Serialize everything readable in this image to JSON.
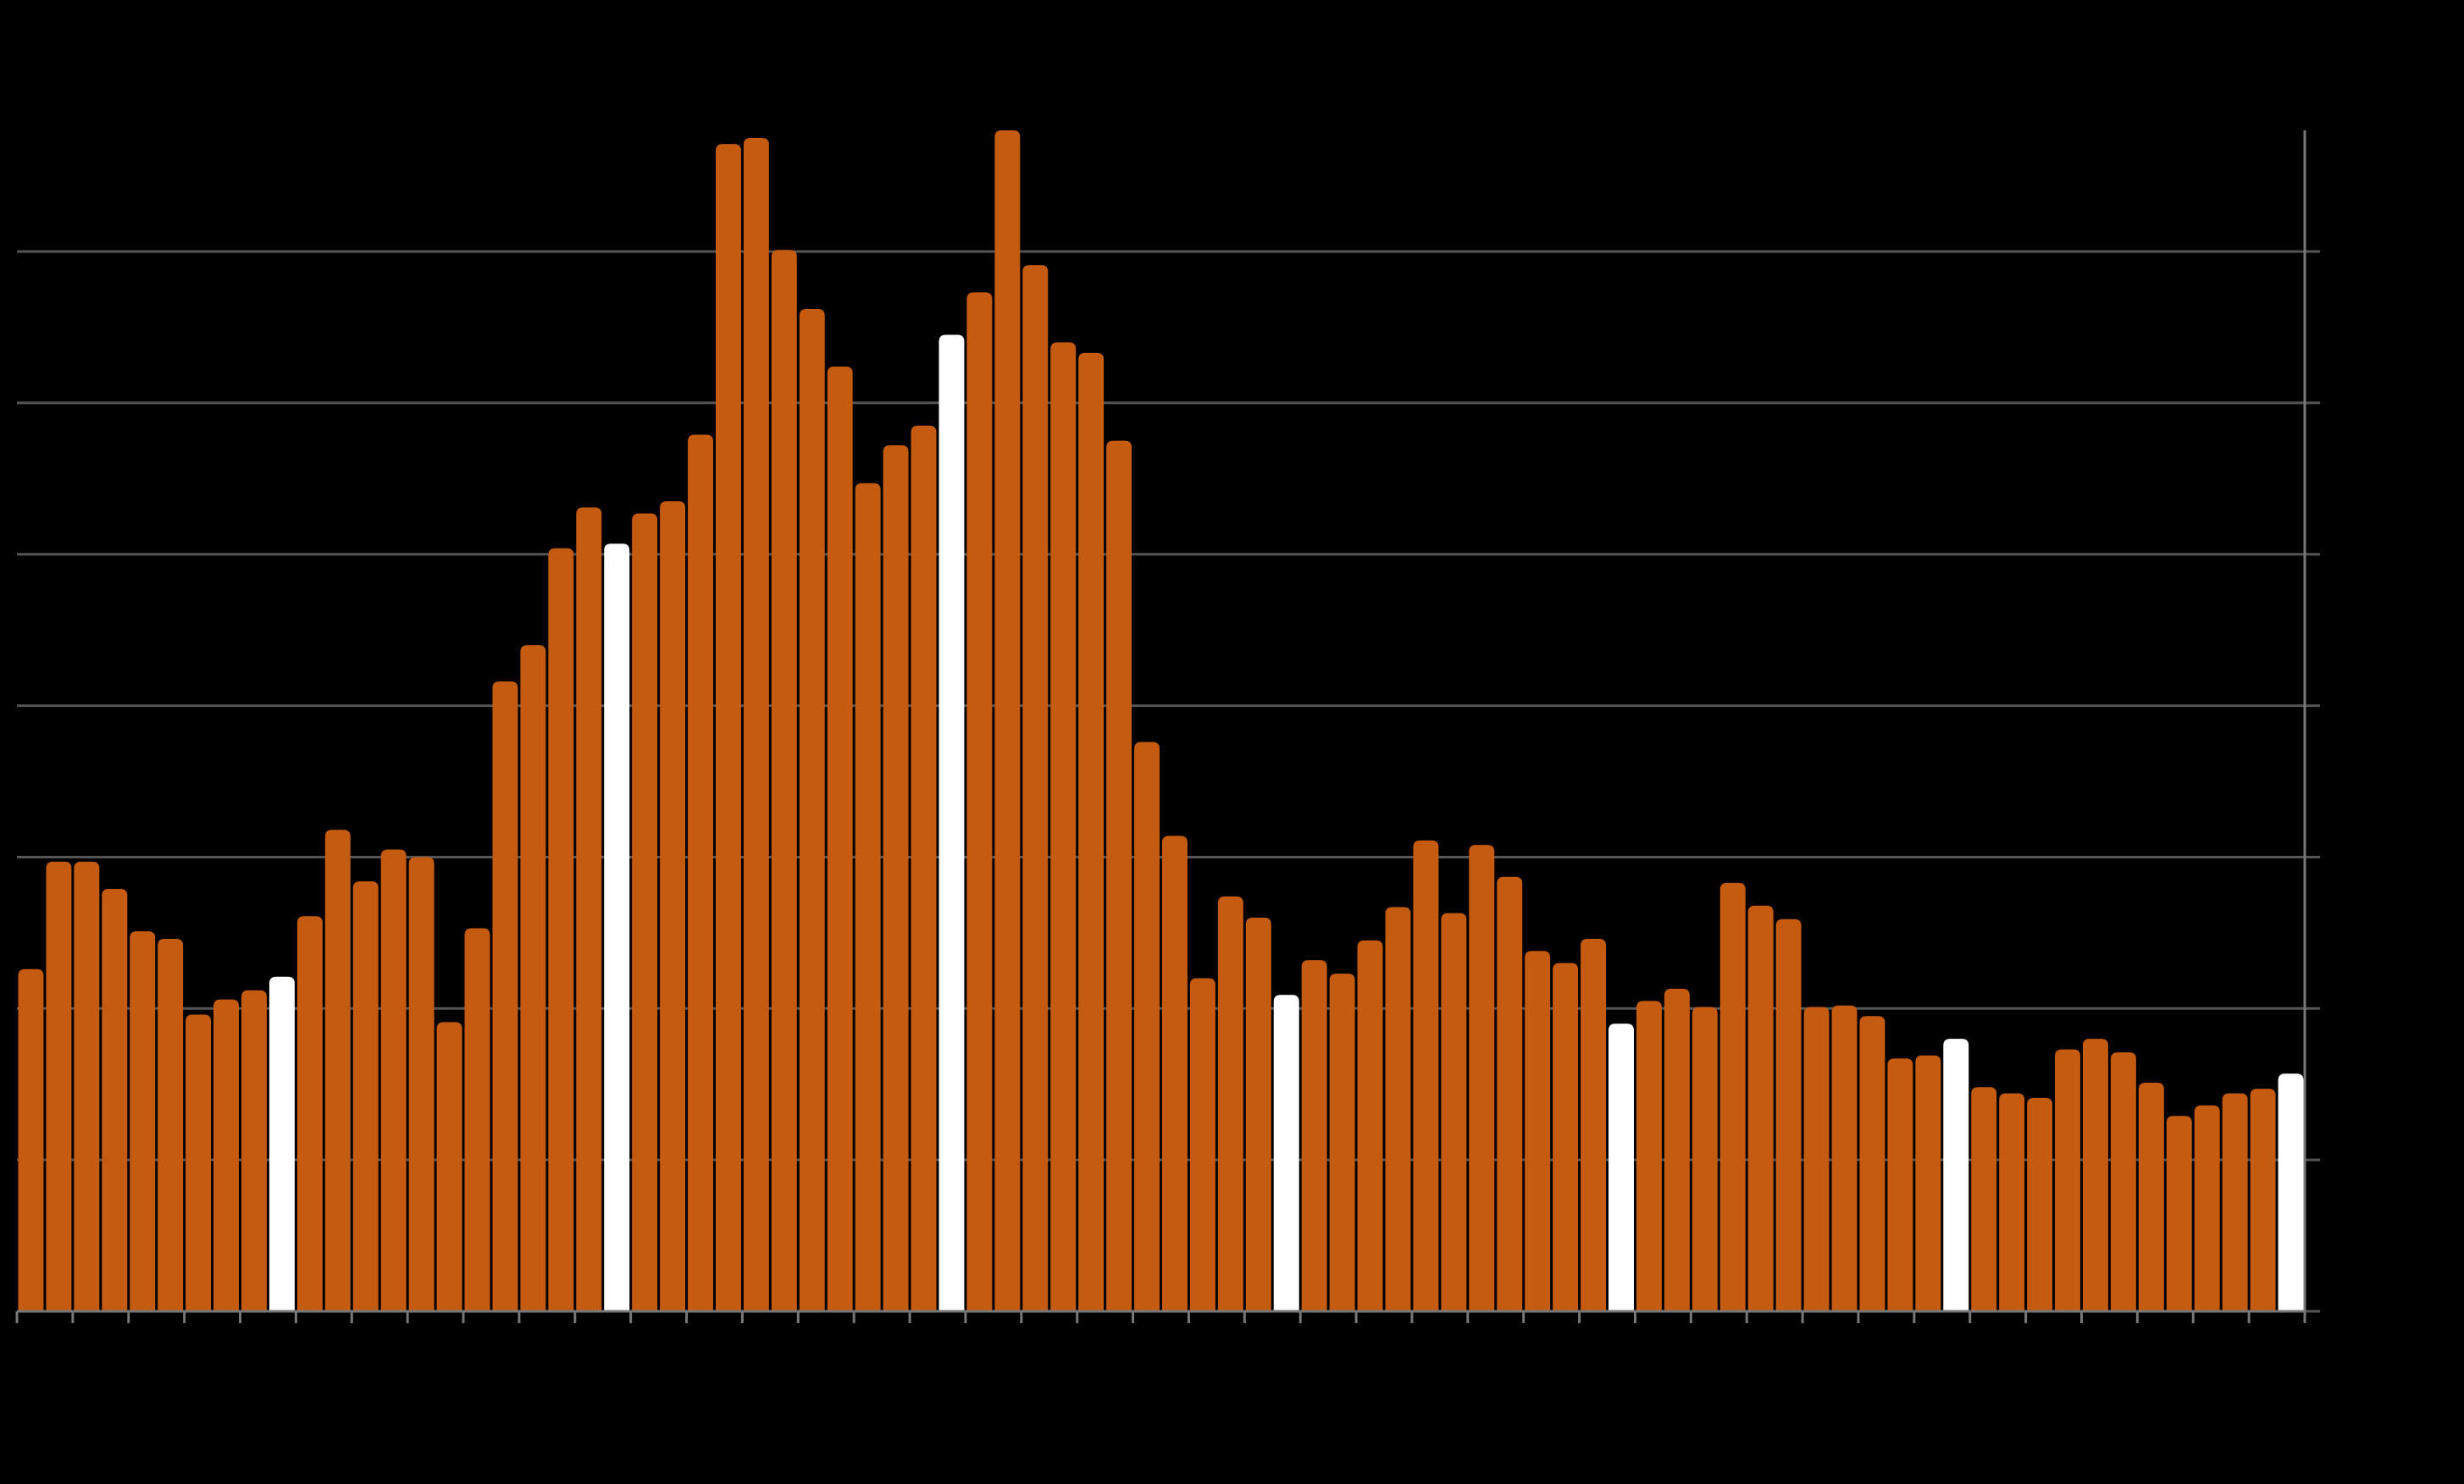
{
  "chart_data": {
    "type": "bar",
    "categories": [
      null,
      null,
      null,
      null,
      null,
      null,
      null,
      null,
      null,
      null,
      null,
      null,
      null,
      null,
      null,
      null,
      null,
      null,
      null,
      null,
      null,
      null,
      null,
      null,
      null,
      null,
      null,
      null,
      null,
      null,
      null,
      null,
      null,
      null,
      null,
      null,
      null,
      null,
      null,
      null,
      null,
      null,
      null,
      null,
      null,
      null,
      null,
      null,
      null,
      null,
      null,
      null,
      null,
      null,
      null,
      null,
      null,
      null,
      null,
      null,
      null,
      null,
      null,
      null,
      null,
      null,
      null,
      null,
      null,
      null,
      null,
      null,
      null,
      null,
      null,
      null,
      null,
      null,
      null,
      null,
      null,
      null
    ],
    "values": [
      2.26,
      2.97,
      2.97,
      2.79,
      2.51,
      2.46,
      1.96,
      2.06,
      2.12,
      2.21,
      2.61,
      3.18,
      2.84,
      3.05,
      3.0,
      1.91,
      2.53,
      4.16,
      4.4,
      5.04,
      5.31,
      5.07,
      5.27,
      5.35,
      5.79,
      7.71,
      7.75,
      7.01,
      6.62,
      6.24,
      5.47,
      5.72,
      5.85,
      6.45,
      6.73,
      7.8,
      6.91,
      6.4,
      6.33,
      5.75,
      3.76,
      3.14,
      2.2,
      2.74,
      2.6,
      2.09,
      2.32,
      2.23,
      2.45,
      2.67,
      3.11,
      2.63,
      3.08,
      2.87,
      2.38,
      2.3,
      2.46,
      1.9,
      2.05,
      2.13,
      2.01,
      2.83,
      2.68,
      2.59,
      2.01,
      2.02,
      1.95,
      1.67,
      1.69,
      1.8,
      1.48,
      1.44,
      1.41,
      1.73,
      1.8,
      1.71,
      1.51,
      1.29,
      1.36,
      1.44,
      1.47,
      1.57
    ],
    "colors": [
      "#c55a11",
      "#c55a11",
      "#c55a11",
      "#c55a11",
      "#c55a11",
      "#c55a11",
      "#c55a11",
      "#c55a11",
      "#c55a11",
      "#ffffff",
      "#c55a11",
      "#c55a11",
      "#c55a11",
      "#c55a11",
      "#c55a11",
      "#c55a11",
      "#c55a11",
      "#c55a11",
      "#c55a11",
      "#c55a11",
      "#c55a11",
      "#ffffff",
      "#c55a11",
      "#c55a11",
      "#c55a11",
      "#c55a11",
      "#c55a11",
      "#c55a11",
      "#c55a11",
      "#c55a11",
      "#c55a11",
      "#c55a11",
      "#c55a11",
      "#ffffff",
      "#c55a11",
      "#c55a11",
      "#c55a11",
      "#c55a11",
      "#c55a11",
      "#c55a11",
      "#c55a11",
      "#c55a11",
      "#c55a11",
      "#c55a11",
      "#c55a11",
      "#ffffff",
      "#c55a11",
      "#c55a11",
      "#c55a11",
      "#c55a11",
      "#c55a11",
      "#c55a11",
      "#c55a11",
      "#c55a11",
      "#c55a11",
      "#c55a11",
      "#c55a11",
      "#ffffff",
      "#c55a11",
      "#c55a11",
      "#c55a11",
      "#c55a11",
      "#c55a11",
      "#c55a11",
      "#c55a11",
      "#c55a11",
      "#c55a11",
      "#c55a11",
      "#c55a11",
      "#ffffff",
      "#c55a11",
      "#c55a11",
      "#c55a11",
      "#c55a11",
      "#c55a11",
      "#c55a11",
      "#c55a11",
      "#c55a11",
      "#c55a11",
      "#c55a11",
      "#c55a11",
      "#ffffff"
    ],
    "ylim": [
      0,
      7.8
    ],
    "yticks": [
      0,
      1,
      2,
      3,
      4,
      5,
      6,
      7
    ],
    "grid": true
  }
}
